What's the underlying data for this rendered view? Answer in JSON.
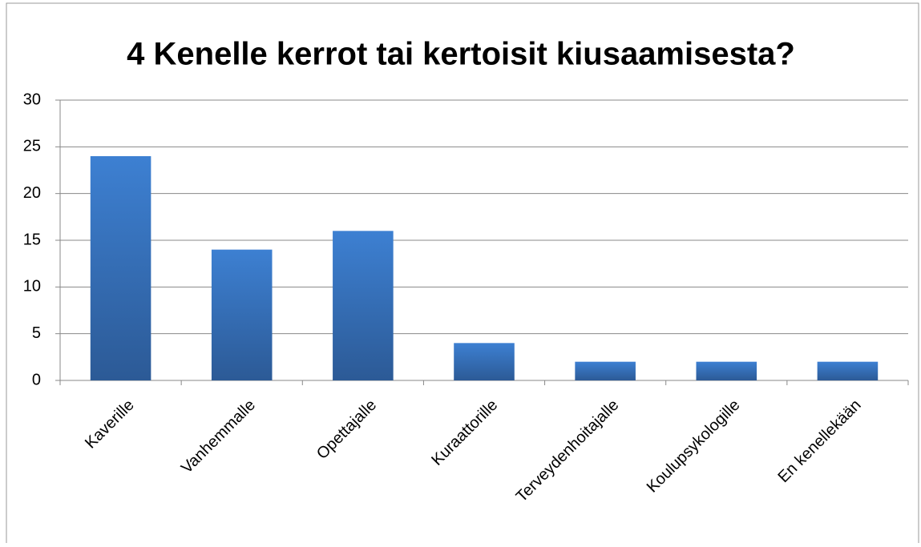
{
  "chart_data": {
    "type": "bar",
    "title": "4 Kenelle kerrot tai kertoisit kiusaamisesta?",
    "categories": [
      "Kaverille",
      "Vanhemmalle",
      "Opettajalle",
      "Kuraattorille",
      "Terveydenhoitajalle",
      "Koulupsykologille",
      "En kenellekään"
    ],
    "values": [
      24,
      14,
      16,
      4,
      2,
      2,
      2
    ],
    "color": "#3d80d2",
    "ylim": [
      0,
      30
    ],
    "yticks": [
      0,
      5,
      10,
      15,
      20,
      25,
      30
    ],
    "grid": true
  }
}
